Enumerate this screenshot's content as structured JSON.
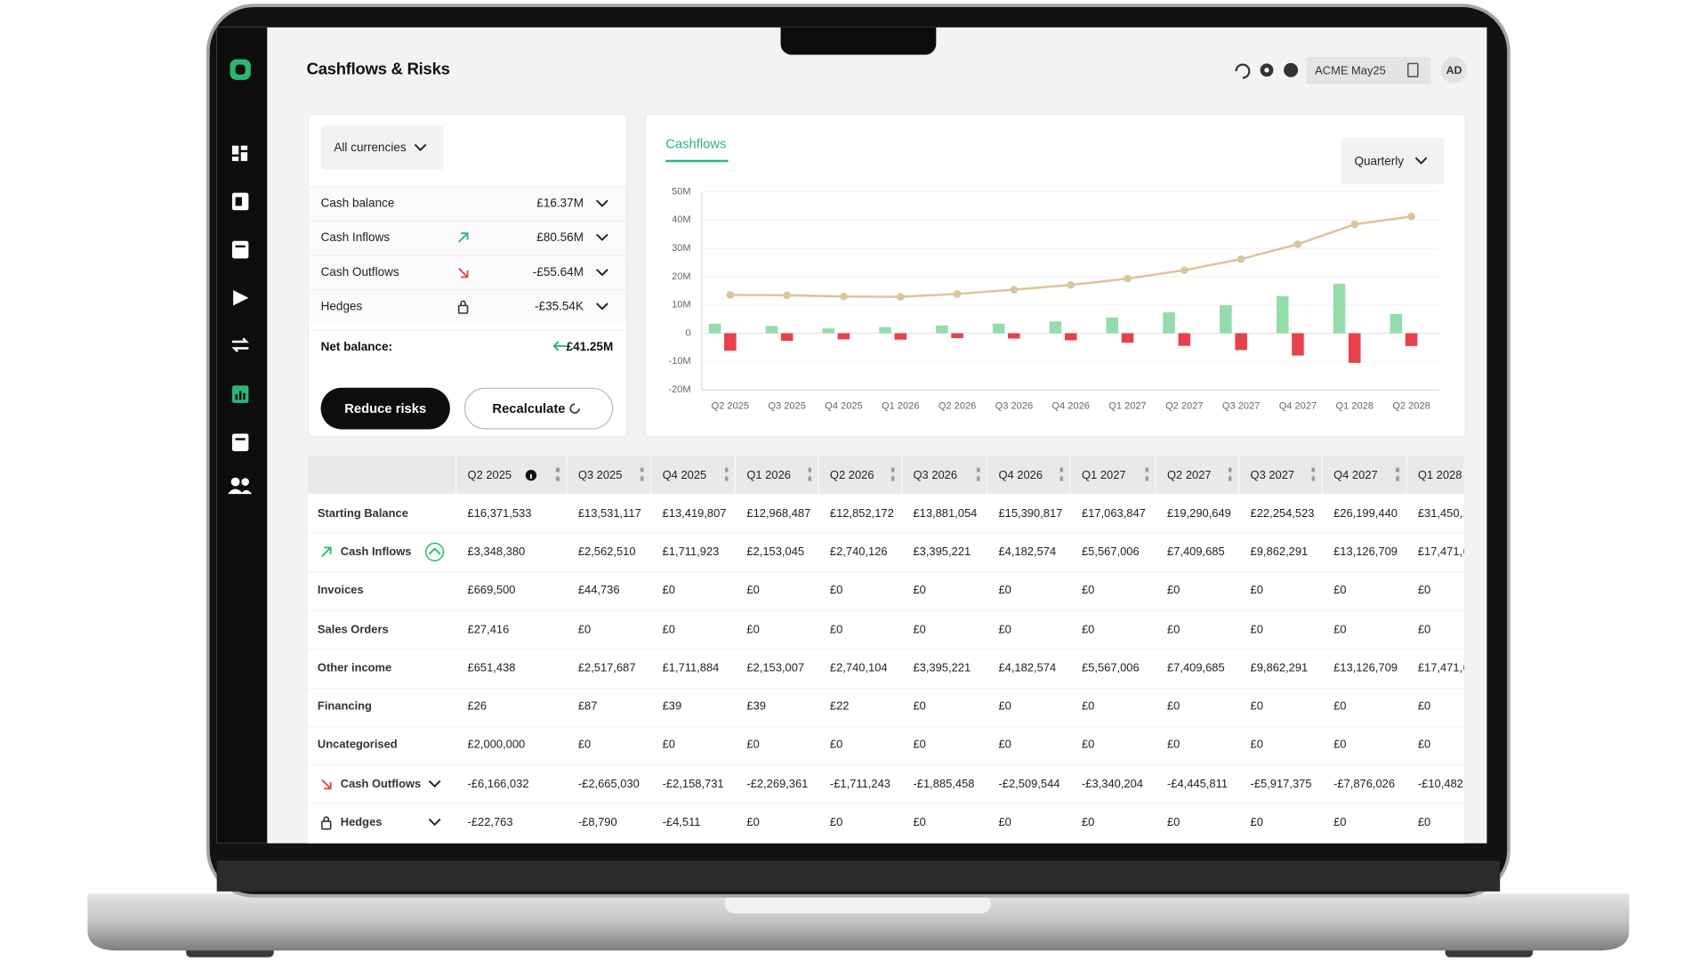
{
  "header": {
    "title": "Cashflows & Risks",
    "entity": "ACME May25",
    "avatar": "AD"
  },
  "summary": {
    "currency": "All currencies",
    "rows": [
      {
        "label": "Cash balance",
        "value": "£16.37M"
      },
      {
        "label": "Cash Inflows",
        "value": "£80.56M"
      },
      {
        "label": "Cash Outflows",
        "value": "-£55.64M"
      },
      {
        "label": "Hedges",
        "value": "-£35.54K"
      }
    ],
    "net_label": "Net balance:",
    "net_value": "£41.25M",
    "buttons": [
      "Reduce risks",
      "Recalculate"
    ]
  },
  "chart_data": {
    "type": "bar",
    "title": "Cashflows",
    "period": "Quarterly",
    "categories": [
      "Q2 2025",
      "Q3 2025",
      "Q4 2025",
      "Q1 2026",
      "Q2 2026",
      "Q3 2026",
      "Q4 2026",
      "Q1 2027",
      "Q2 2027",
      "Q3 2027",
      "Q4 2027",
      "Q1 2028",
      "Q2 2028"
    ],
    "series": [
      {
        "type": "bar",
        "color": "#94dcaa",
        "values": [
          3.35,
          2.56,
          1.71,
          2.15,
          2.74,
          3.4,
          4.18,
          5.57,
          7.41,
          9.86,
          13.13,
          17.47,
          6.8
        ]
      },
      {
        "type": "bar",
        "color": "#e8414a",
        "values": [
          -6.17,
          -2.67,
          -2.16,
          -2.27,
          -1.71,
          -1.89,
          -2.51,
          -3.34,
          -4.45,
          -5.92,
          -7.88,
          -10.48,
          -4.5
        ]
      },
      {
        "type": "line",
        "color": "#dcc49a",
        "values": [
          13.53,
          13.42,
          12.97,
          12.85,
          13.88,
          15.39,
          17.06,
          19.29,
          22.25,
          26.2,
          31.45,
          38.44,
          41.25
        ]
      }
    ],
    "ylim": [
      -20,
      50
    ],
    "yticks": [
      {
        "value": 50,
        "label": "50M"
      },
      {
        "value": 40,
        "label": "40M"
      },
      {
        "value": 30,
        "label": "30M"
      },
      {
        "value": 20,
        "label": "20M"
      },
      {
        "value": 10,
        "label": "10M"
      },
      0,
      {
        "value": -10,
        "label": "-10M"
      },
      {
        "value": -20,
        "label": "-20M"
      }
    ],
    "grid": true
  },
  "table": {
    "columns": [
      "Q2 2025",
      "Q3 2025",
      "Q4 2025",
      "Q1 2026",
      "Q2 2026",
      "Q3 2026",
      "Q4 2026",
      "Q1 2027",
      "Q2 2027",
      "Q3 2027",
      "Q4 2027",
      "Q1 2028"
    ],
    "rows": [
      {
        "label": "Starting Balance",
        "values": [
          "£16,371,533",
          "£13,531,117",
          "£13,419,807",
          "£12,968,487",
          "£12,852,172",
          "£13,881,054",
          "£15,390,817",
          "£17,063,847",
          "£19,290,649",
          "£22,254,523",
          "£26,199,440",
          "£31,450,1"
        ]
      },
      {
        "label": "Cash Inflows",
        "values": [
          "£3,348,380",
          "£2,562,510",
          "£1,711,923",
          "£2,153,045",
          "£2,740,126",
          "£3,395,221",
          "£4,182,574",
          "£5,567,006",
          "£7,409,685",
          "£9,862,291",
          "£13,126,709",
          "£17,471,6"
        ]
      },
      {
        "label": "Invoices",
        "values": [
          "£669,500",
          "£44,736",
          "£0",
          "£0",
          "£0",
          "£0",
          "£0",
          "£0",
          "£0",
          "£0",
          "£0",
          "£0"
        ]
      },
      {
        "label": "Sales Orders",
        "values": [
          "£27,416",
          "£0",
          "£0",
          "£0",
          "£0",
          "£0",
          "£0",
          "£0",
          "£0",
          "£0",
          "£0",
          "£0"
        ]
      },
      {
        "label": "Other income",
        "values": [
          "£651,438",
          "£2,517,687",
          "£1,711,884",
          "£2,153,007",
          "£2,740,104",
          "£3,395,221",
          "£4,182,574",
          "£5,567,006",
          "£7,409,685",
          "£9,862,291",
          "£13,126,709",
          "£17,471,6"
        ]
      },
      {
        "label": "Financing",
        "values": [
          "£26",
          "£87",
          "£39",
          "£39",
          "£22",
          "£0",
          "£0",
          "£0",
          "£0",
          "£0",
          "£0",
          "£0"
        ]
      },
      {
        "label": "Uncategorised",
        "values": [
          "£2,000,000",
          "£0",
          "£0",
          "£0",
          "£0",
          "£0",
          "£0",
          "£0",
          "£0",
          "£0",
          "£0",
          "£0"
        ]
      },
      {
        "label": "Cash Outflows",
        "values": [
          "-£6,166,032",
          "-£2,665,030",
          "-£2,158,731",
          "-£2,269,361",
          "-£1,711,243",
          "-£1,885,458",
          "-£2,509,544",
          "-£3,340,204",
          "-£4,445,811",
          "-£5,917,375",
          "-£7,876,026",
          "-£10,482"
        ]
      },
      {
        "label": "Hedges",
        "values": [
          "-£22,763",
          "-£8,790",
          "-£4,511",
          "£0",
          "£0",
          "£0",
          "£0",
          "£0",
          "£0",
          "£0",
          "£0",
          "£0"
        ]
      }
    ]
  }
}
